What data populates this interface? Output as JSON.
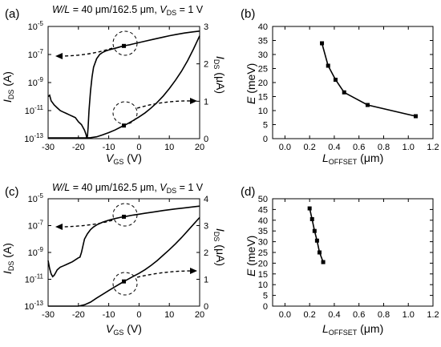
{
  "chart_data": [
    {
      "panel": "(a)",
      "type": "line",
      "header": {
        "wl_var": "W/L",
        "wl_value": " = 40 μm/162.5 μm, ",
        "vds_var": "V",
        "vds_sub": "DS",
        "vds_value": " = 1 V"
      },
      "xlabel": {
        "main": "V",
        "sub": "GS",
        "unit": " (V)"
      },
      "ylabel_left": {
        "main": "I",
        "sub": "DS",
        "unit": " (A)"
      },
      "ylabel_right": {
        "main": "I",
        "sub": "DS",
        "unit": " (μA)"
      },
      "xlim": [
        -30,
        20
      ],
      "xticks": [
        "-30",
        "-20",
        "-10",
        "0",
        "10",
        "20"
      ],
      "ylim_left_log": [
        -13,
        -5
      ],
      "yticks_left": [
        {
          "b": "10",
          "e": "-13",
          "v": -13
        },
        {
          "b": "10",
          "e": "-11",
          "v": -11
        },
        {
          "b": "10",
          "e": "-9",
          "v": -9
        },
        {
          "b": "10",
          "e": "-7",
          "v": -7
        },
        {
          "b": "10",
          "e": "-5",
          "v": -5
        }
      ],
      "ylim_right": [
        0,
        3
      ],
      "yticks_right": [
        "0",
        "1",
        "2",
        "3"
      ],
      "series": [
        {
          "axis": "log",
          "x": [
            -30,
            -29.5,
            -29,
            -28,
            -27,
            -26,
            -25,
            -24,
            -23,
            -22,
            -21,
            -20,
            -19,
            -18,
            -17.5,
            -17.2,
            -17,
            -16.8,
            -16.5,
            -16,
            -15.5,
            -15,
            -14,
            -13,
            -12,
            -11,
            -10,
            -9,
            -8,
            -7,
            -6,
            -5,
            -4,
            -3,
            -2,
            0,
            2,
            5,
            8,
            10,
            12,
            15,
            18,
            20
          ],
          "y": [
            -10.0,
            -9.9,
            -10.3,
            -10.6,
            -10.8,
            -11.0,
            -11.1,
            -11.2,
            -11.3,
            -11.4,
            -11.5,
            -11.8,
            -12.0,
            -12.4,
            -12.7,
            -13.0,
            -12.8,
            -12.2,
            -11.0,
            -9.6,
            -8.6,
            -7.9,
            -7.3,
            -7.0,
            -6.85,
            -6.75,
            -6.68,
            -6.62,
            -6.56,
            -6.5,
            -6.44,
            -6.39,
            -6.34,
            -6.3,
            -6.25,
            -6.15,
            -6.05,
            -5.9,
            -5.76,
            -5.66,
            -5.58,
            -5.47,
            -5.38,
            -5.33
          ]
        },
        {
          "axis": "linear",
          "x": [
            -30,
            -20,
            -18,
            -17,
            -16,
            -14,
            -12,
            -10,
            -8,
            -6,
            -4,
            -2,
            0,
            2,
            4,
            6,
            8,
            10,
            12,
            14,
            16,
            18,
            20
          ],
          "y": [
            0.02,
            0.02,
            0.02,
            0.02,
            0.025,
            0.05,
            0.1,
            0.16,
            0.23,
            0.31,
            0.39,
            0.48,
            0.58,
            0.69,
            0.82,
            0.97,
            1.14,
            1.34,
            1.56,
            1.8,
            2.08,
            2.4,
            2.75
          ]
        }
      ],
      "markers": [
        {
          "axis": "log",
          "x": -5,
          "y": -6.39
        },
        {
          "axis": "linear",
          "x": -5,
          "y": 0.35
        }
      ]
    },
    {
      "panel": "(b)",
      "type": "line",
      "xlabel": {
        "main": "L",
        "sub": "OFFSET",
        "unit": " (μm)"
      },
      "ylabel": {
        "main": "E",
        "unit": " (meV)"
      },
      "xlim": [
        -0.1,
        1.2
      ],
      "xticks": [
        "0.0",
        "0.2",
        "0.4",
        "0.6",
        "0.8",
        "1.0",
        "1.2"
      ],
      "ylim": [
        0,
        40
      ],
      "yticks": [
        "0",
        "5",
        "10",
        "15",
        "20",
        "25",
        "30",
        "35",
        "40"
      ],
      "x": [
        0.3,
        0.35,
        0.41,
        0.48,
        0.67,
        1.06
      ],
      "y": [
        34,
        26,
        21,
        16.5,
        12,
        8
      ]
    },
    {
      "panel": "(c)",
      "type": "line",
      "header": {
        "wl_var": "W/L",
        "wl_value": " = 40 μm/162.5 μm, ",
        "vds_var": "V",
        "vds_sub": "DS",
        "vds_value": " = 1 V"
      },
      "xlabel": {
        "main": "V",
        "sub": "GS",
        "unit": " (V)"
      },
      "ylabel_left": {
        "main": "I",
        "sub": "DS",
        "unit": " (A)"
      },
      "ylabel_right": {
        "main": "I",
        "sub": "DS",
        "unit": " (μA)"
      },
      "xlim": [
        -30,
        20
      ],
      "xticks": [
        "-30",
        "-20",
        "-10",
        "0",
        "10",
        "20"
      ],
      "ylim_left_log": [
        -13,
        -5
      ],
      "yticks_left": [
        {
          "b": "10",
          "e": "-13",
          "v": -13
        },
        {
          "b": "10",
          "e": "-11",
          "v": -11
        },
        {
          "b": "10",
          "e": "-9",
          "v": -9
        },
        {
          "b": "10",
          "e": "-7",
          "v": -7
        },
        {
          "b": "10",
          "e": "-5",
          "v": -5
        }
      ],
      "ylim_right": [
        0,
        4
      ],
      "yticks_right": [
        "0",
        "1",
        "2",
        "3",
        "4"
      ],
      "series": [
        {
          "axis": "log",
          "x": [
            -30,
            -29.5,
            -29,
            -28.5,
            -28,
            -27.5,
            -27,
            -26,
            -25,
            -24,
            -23,
            -22,
            -21,
            -20,
            -19.5,
            -19,
            -18.5,
            -18,
            -17,
            -16,
            -15,
            -14,
            -12,
            -10,
            -8,
            -6,
            -4,
            -2,
            0,
            2,
            5,
            8,
            10,
            12,
            15,
            18,
            20
          ],
          "y": [
            -9.6,
            -10.2,
            -10.6,
            -10.8,
            -10.7,
            -10.5,
            -10.3,
            -10.1,
            -10.0,
            -9.9,
            -9.8,
            -9.7,
            -9.55,
            -9.4,
            -9.35,
            -9.0,
            -8.5,
            -8.0,
            -7.6,
            -7.3,
            -7.1,
            -6.95,
            -6.75,
            -6.6,
            -6.48,
            -6.38,
            -6.3,
            -6.22,
            -6.15,
            -6.08,
            -5.98,
            -5.88,
            -5.82,
            -5.76,
            -5.68,
            -5.6,
            -5.55
          ]
        },
        {
          "axis": "linear",
          "x": [
            -30,
            -25,
            -22,
            -20,
            -18,
            -16,
            -14,
            -12,
            -10,
            -8,
            -6,
            -4,
            -2,
            0,
            2,
            4,
            6,
            8,
            10,
            12,
            14,
            16,
            18,
            20
          ],
          "y": [
            0.0,
            0.0,
            0.0,
            0.0,
            0.05,
            0.15,
            0.3,
            0.44,
            0.58,
            0.72,
            0.85,
            0.98,
            1.1,
            1.22,
            1.36,
            1.52,
            1.7,
            1.9,
            2.1,
            2.32,
            2.55,
            2.8,
            3.05,
            3.3
          ]
        }
      ],
      "markers": [
        {
          "axis": "log",
          "x": -5,
          "y": -6.34
        },
        {
          "axis": "linear",
          "x": -5,
          "y": 0.92
        }
      ]
    },
    {
      "panel": "(d)",
      "type": "line",
      "xlabel": {
        "main": "L",
        "sub": "OFFSET",
        "unit": " (μm)"
      },
      "ylabel": {
        "main": "E",
        "unit": " (meV)"
      },
      "xlim": [
        -0.1,
        1.2
      ],
      "xticks": [
        "0.0",
        "0.2",
        "0.4",
        "0.6",
        "0.8",
        "1.0",
        "1.2"
      ],
      "ylim": [
        0,
        50
      ],
      "yticks": [
        "0",
        "5",
        "10",
        "15",
        "20",
        "25",
        "30",
        "35",
        "40",
        "45",
        "50"
      ],
      "x": [
        0.2,
        0.22,
        0.24,
        0.26,
        0.28,
        0.31
      ],
      "y": [
        45.5,
        40.5,
        35,
        30.5,
        25,
        20.5
      ]
    }
  ]
}
